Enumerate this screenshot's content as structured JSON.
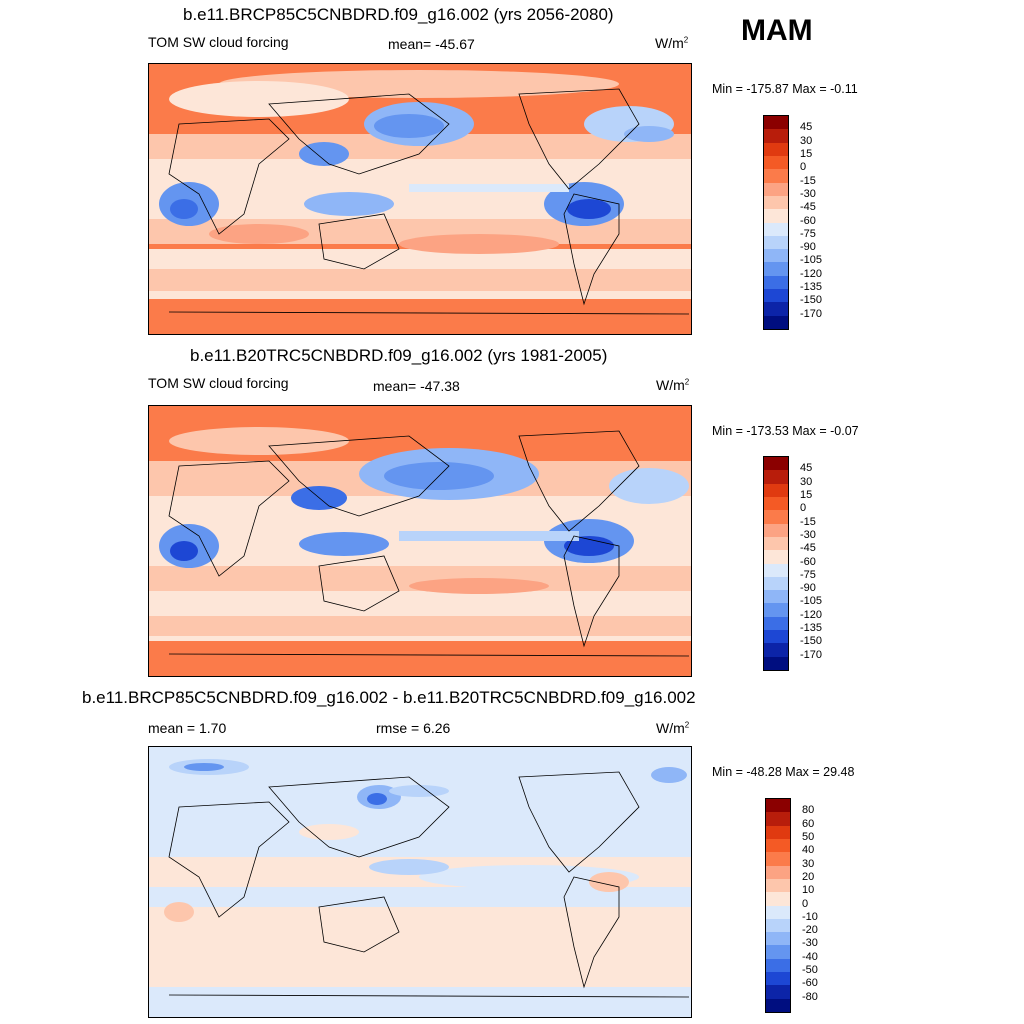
{
  "season": "MAM",
  "panels": [
    {
      "id": "future",
      "title": "b.e11.BRCP85C5CNBDRD.f09_g16.002 (yrs 2056-2080)",
      "left_label": "TOM SW cloud forcing",
      "mid_label": "mean= -45.67",
      "units": "W/m",
      "units_sup": "2",
      "minmax": "Min = -175.87 Max =  -0.11",
      "colorbar_labels": [
        "45",
        "30",
        "15",
        "0",
        "-15",
        "-30",
        "-45",
        "-60",
        "-75",
        "-90",
        "-105",
        "-120",
        "-135",
        "-150",
        "-170"
      ],
      "colorbar_colors": [
        "#8b0000",
        "#b81d0b",
        "#e03a10",
        "#f45a25",
        "#fb7b4a",
        "#fca383",
        "#fdc6ac",
        "#fde6d8",
        "#dbe9fb",
        "#b8d3fa",
        "#8fb6f7",
        "#6495f0",
        "#3b6ee6",
        "#1d47d4",
        "#0c24a8",
        "#000e80"
      ]
    },
    {
      "id": "historical",
      "title": "b.e11.B20TRC5CNBDRD.f09_g16.002 (yrs 1981-2005)",
      "left_label": "TOM SW cloud forcing",
      "mid_label": "mean= -47.38",
      "units": "W/m",
      "units_sup": "2",
      "minmax": "Min = -173.53 Max =  -0.07",
      "colorbar_labels": [
        "45",
        "30",
        "15",
        "0",
        "-15",
        "-30",
        "-45",
        "-60",
        "-75",
        "-90",
        "-105",
        "-120",
        "-135",
        "-150",
        "-170"
      ],
      "colorbar_colors": [
        "#8b0000",
        "#b81d0b",
        "#e03a10",
        "#f45a25",
        "#fb7b4a",
        "#fca383",
        "#fdc6ac",
        "#fde6d8",
        "#dbe9fb",
        "#b8d3fa",
        "#8fb6f7",
        "#6495f0",
        "#3b6ee6",
        "#1d47d4",
        "#0c24a8",
        "#000e80"
      ]
    },
    {
      "id": "difference",
      "title": "b.e11.BRCP85C5CNBDRD.f09_g16.002 - b.e11.B20TRC5CNBDRD.f09_g16.002",
      "left_label": "mean =   1.70",
      "mid_label": "rmse =   6.26",
      "units": "W/m",
      "units_sup": "2",
      "minmax": "Min = -48.28 Max =  29.48",
      "colorbar_labels": [
        "80",
        "60",
        "50",
        "40",
        "30",
        "20",
        "10",
        "0",
        "-10",
        "-20",
        "-30",
        "-40",
        "-50",
        "-60",
        "-80"
      ],
      "colorbar_colors": [
        "#8b0000",
        "#b81d0b",
        "#e03a10",
        "#f45a25",
        "#fb7b4a",
        "#fca383",
        "#fdc6ac",
        "#fde6d8",
        "#dbe9fb",
        "#b8d3fa",
        "#8fb6f7",
        "#6495f0",
        "#3b6ee6",
        "#1d47d4",
        "#0c24a8",
        "#000e80"
      ]
    }
  ]
}
